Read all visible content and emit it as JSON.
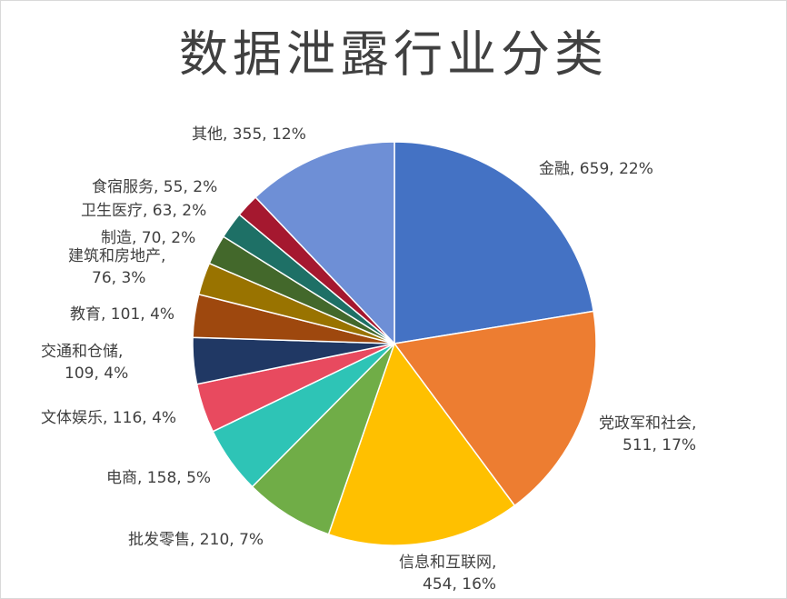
{
  "chart_data": {
    "type": "pie",
    "title": "数据泄露行业分类",
    "slices": [
      {
        "category": "金融",
        "value": 659,
        "percent": "22%",
        "color": "#4472C4"
      },
      {
        "category": "党政军和社会",
        "value": 511,
        "percent": "17%",
        "color": "#ED7D31"
      },
      {
        "category": "信息和互联网",
        "value": 454,
        "percent": "16%",
        "color": "#FFC000"
      },
      {
        "category": "批发零售",
        "value": 210,
        "percent": "7%",
        "color": "#70AD47"
      },
      {
        "category": "电商",
        "value": 158,
        "percent": "5%",
        "color": "#2EC4B6"
      },
      {
        "category": "文体娱乐",
        "value": 116,
        "percent": "4%",
        "color": "#E84A5F"
      },
      {
        "category": "交通和仓储",
        "value": 109,
        "percent": "4%",
        "color": "#203864"
      },
      {
        "category": "教育",
        "value": 101,
        "percent": "4%",
        "color": "#9E480E"
      },
      {
        "category": "建筑和房地产",
        "value": 76,
        "percent": "3%",
        "color": "#997300"
      },
      {
        "category": "制造",
        "value": 70,
        "percent": "2%",
        "color": "#43682B"
      },
      {
        "category": "卫生医疗",
        "value": 63,
        "percent": "2%",
        "color": "#1E7066"
      },
      {
        "category": "食宿服务",
        "value": 55,
        "percent": "2%",
        "color": "#A5182F"
      },
      {
        "category": "其他",
        "value": 355,
        "percent": "12%",
        "color": "#6E8FD6"
      }
    ]
  }
}
